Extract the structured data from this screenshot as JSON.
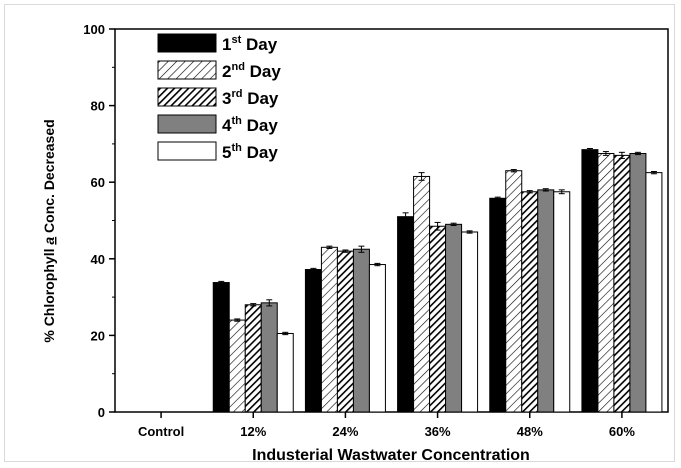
{
  "chart_data": {
    "type": "bar",
    "xlabel": "Industerial Wastwater Concentration",
    "ylabel": {
      "before": "% Chlorophyll ",
      "italic": "a",
      "after": " Conc. Decreased"
    },
    "ylim": [
      0,
      100
    ],
    "yticks": [
      "0",
      "20",
      "40",
      "60",
      "80",
      "100"
    ],
    "categories": [
      "Control",
      "12%",
      "24%",
      "36%",
      "48%",
      "60%"
    ],
    "series": [
      {
        "name": "1st Day",
        "base": "1",
        "sup": "st",
        "rest": " Day",
        "style": "solid-black",
        "values": [
          0,
          33.8,
          37.2,
          51.0,
          55.8,
          68.5
        ],
        "errors": [
          0,
          0.3,
          0.3,
          1.0,
          0.3,
          0.3
        ]
      },
      {
        "name": "2nd Day",
        "base": "2",
        "sup": "nd",
        "rest": " Day",
        "style": "hatch-light",
        "values": [
          0,
          24.0,
          43.0,
          61.5,
          63.0,
          67.5
        ],
        "errors": [
          0,
          0.3,
          0.3,
          1.0,
          0.3,
          0.5
        ]
      },
      {
        "name": "3rd Day",
        "base": "3",
        "sup": "rd",
        "rest": " Day",
        "style": "hatch-dense",
        "values": [
          0,
          28.0,
          42.0,
          48.5,
          57.5,
          67.0
        ],
        "errors": [
          0,
          0.3,
          0.3,
          1.0,
          0.3,
          0.8
        ]
      },
      {
        "name": "4th Day",
        "base": "4",
        "sup": "th",
        "rest": " Day",
        "style": "solid-gray",
        "values": [
          0,
          28.5,
          42.5,
          49.0,
          58.0,
          67.5
        ],
        "errors": [
          0,
          0.8,
          0.8,
          0.3,
          0.3,
          0.3
        ]
      },
      {
        "name": "5th Day",
        "base": "5",
        "sup": "th",
        "rest": " Day",
        "style": "white",
        "values": [
          0,
          20.5,
          38.5,
          47.0,
          57.5,
          62.5
        ],
        "errors": [
          0,
          0.3,
          0.3,
          0.3,
          0.5,
          0.3
        ]
      }
    ],
    "legend_position": "top-left",
    "grid": false
  }
}
